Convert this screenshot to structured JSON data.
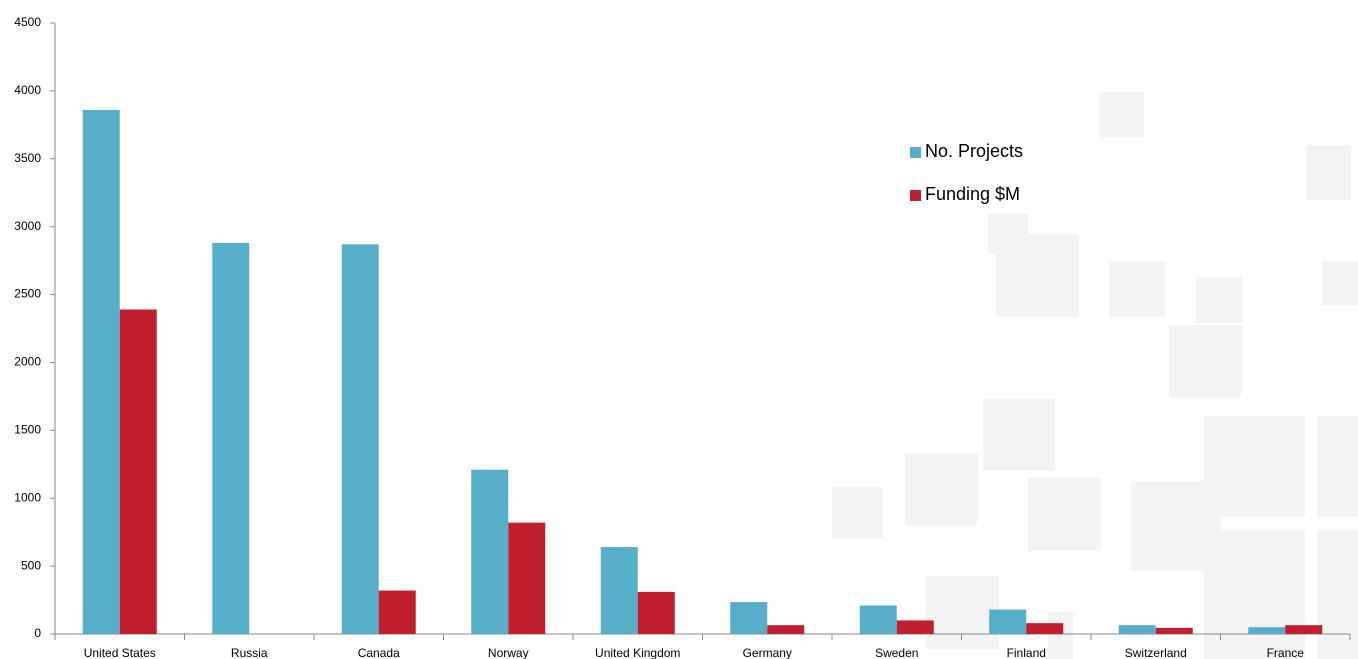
{
  "chart_data": {
    "type": "bar",
    "categories": [
      "United States",
      "Russia",
      "Canada",
      "Norway",
      "United Kingdom",
      "Germany",
      "Sweden",
      "Finland",
      "Switzerland",
      "France"
    ],
    "series": [
      {
        "name": "No. Projects",
        "color": "#56aec9",
        "values": [
          3860,
          2880,
          2870,
          1210,
          640,
          235,
          210,
          180,
          65,
          50
        ]
      },
      {
        "name": "Funding $M",
        "color": "#c01f2d",
        "values": [
          2390,
          null,
          320,
          820,
          310,
          65,
          100,
          80,
          45,
          65
        ]
      }
    ],
    "ylim": [
      0,
      4500
    ],
    "yticks": [
      0,
      500,
      1000,
      1500,
      2000,
      2500,
      3000,
      3500,
      4000,
      4500
    ]
  }
}
